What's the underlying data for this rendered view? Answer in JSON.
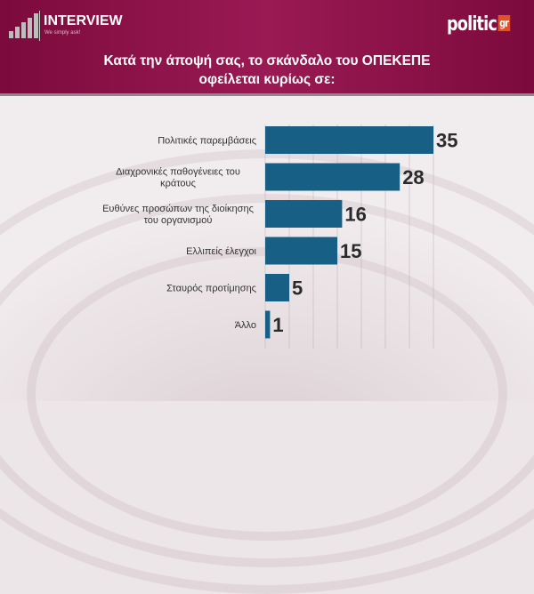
{
  "header": {
    "brand": "INTERVIEW",
    "tagline": "We simply ask!",
    "publisher": "politic",
    "publisher_suffix": "gr"
  },
  "colors": {
    "header": "#8b1149",
    "bar": "#175f84"
  },
  "chart_data": {
    "type": "bar",
    "orientation": "horizontal",
    "title_lines": [
      "Κατά την άποψή σας, το σκάνδαλο του ΟΠΕΚΕΠΕ",
      "οφείλεται κυρίως σε:"
    ],
    "categories": [
      [
        "Πολιτικές παρεμβάσεις"
      ],
      [
        "Διαχρονικές παθογένειες του",
        "κράτους"
      ],
      [
        "Ευθύνες προσώπων της διοίκησης",
        "του οργανισμού"
      ],
      [
        "Ελλιπείς έλεγχοι"
      ],
      [
        "Σταυρός προτίμησης"
      ],
      [
        "Άλλο"
      ]
    ],
    "values": [
      35,
      28,
      16,
      15,
      5,
      1
    ],
    "xlim": [
      0,
      35
    ],
    "grid": true,
    "data_labels": true
  }
}
